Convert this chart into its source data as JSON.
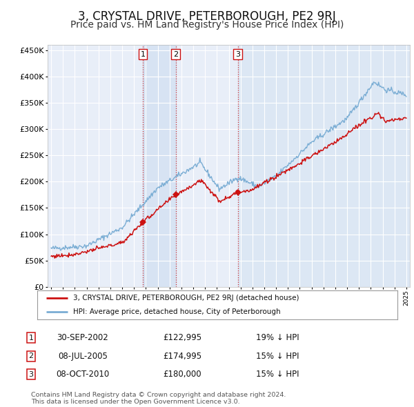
{
  "title": "3, CRYSTAL DRIVE, PETERBOROUGH, PE2 9RJ",
  "subtitle": "Price paid vs. HM Land Registry's House Price Index (HPI)",
  "title_fontsize": 12,
  "subtitle_fontsize": 10,
  "background_color": "#ffffff",
  "plot_bg_color": "#e8eef8",
  "grid_color": "#ffffff",
  "sale1": {
    "date_num": 2002.75,
    "price": 122995,
    "label": "1"
  },
  "sale2": {
    "date_num": 2005.52,
    "price": 174995,
    "label": "2"
  },
  "sale3": {
    "date_num": 2010.77,
    "price": 180000,
    "label": "3"
  },
  "hpi_color": "#7aadd4",
  "price_color": "#cc1111",
  "ylim": [
    0,
    460000
  ],
  "xlim_start": 1994.7,
  "xlim_end": 2025.3,
  "legend_items": [
    {
      "label": "3, CRYSTAL DRIVE, PETERBOROUGH, PE2 9RJ (detached house)",
      "color": "#cc1111"
    },
    {
      "label": "HPI: Average price, detached house, City of Peterborough",
      "color": "#7aadd4"
    }
  ],
  "table_rows": [
    {
      "num": "1",
      "date": "30-SEP-2002",
      "price": "£122,995",
      "pct": "19% ↓ HPI"
    },
    {
      "num": "2",
      "date": "08-JUL-2005",
      "price": "£174,995",
      "pct": "15% ↓ HPI"
    },
    {
      "num": "3",
      "date": "08-OCT-2010",
      "price": "£180,000",
      "pct": "15% ↓ HPI"
    }
  ],
  "footnote": "Contains HM Land Registry data © Crown copyright and database right 2024.\nThis data is licensed under the Open Government Licence v3.0."
}
